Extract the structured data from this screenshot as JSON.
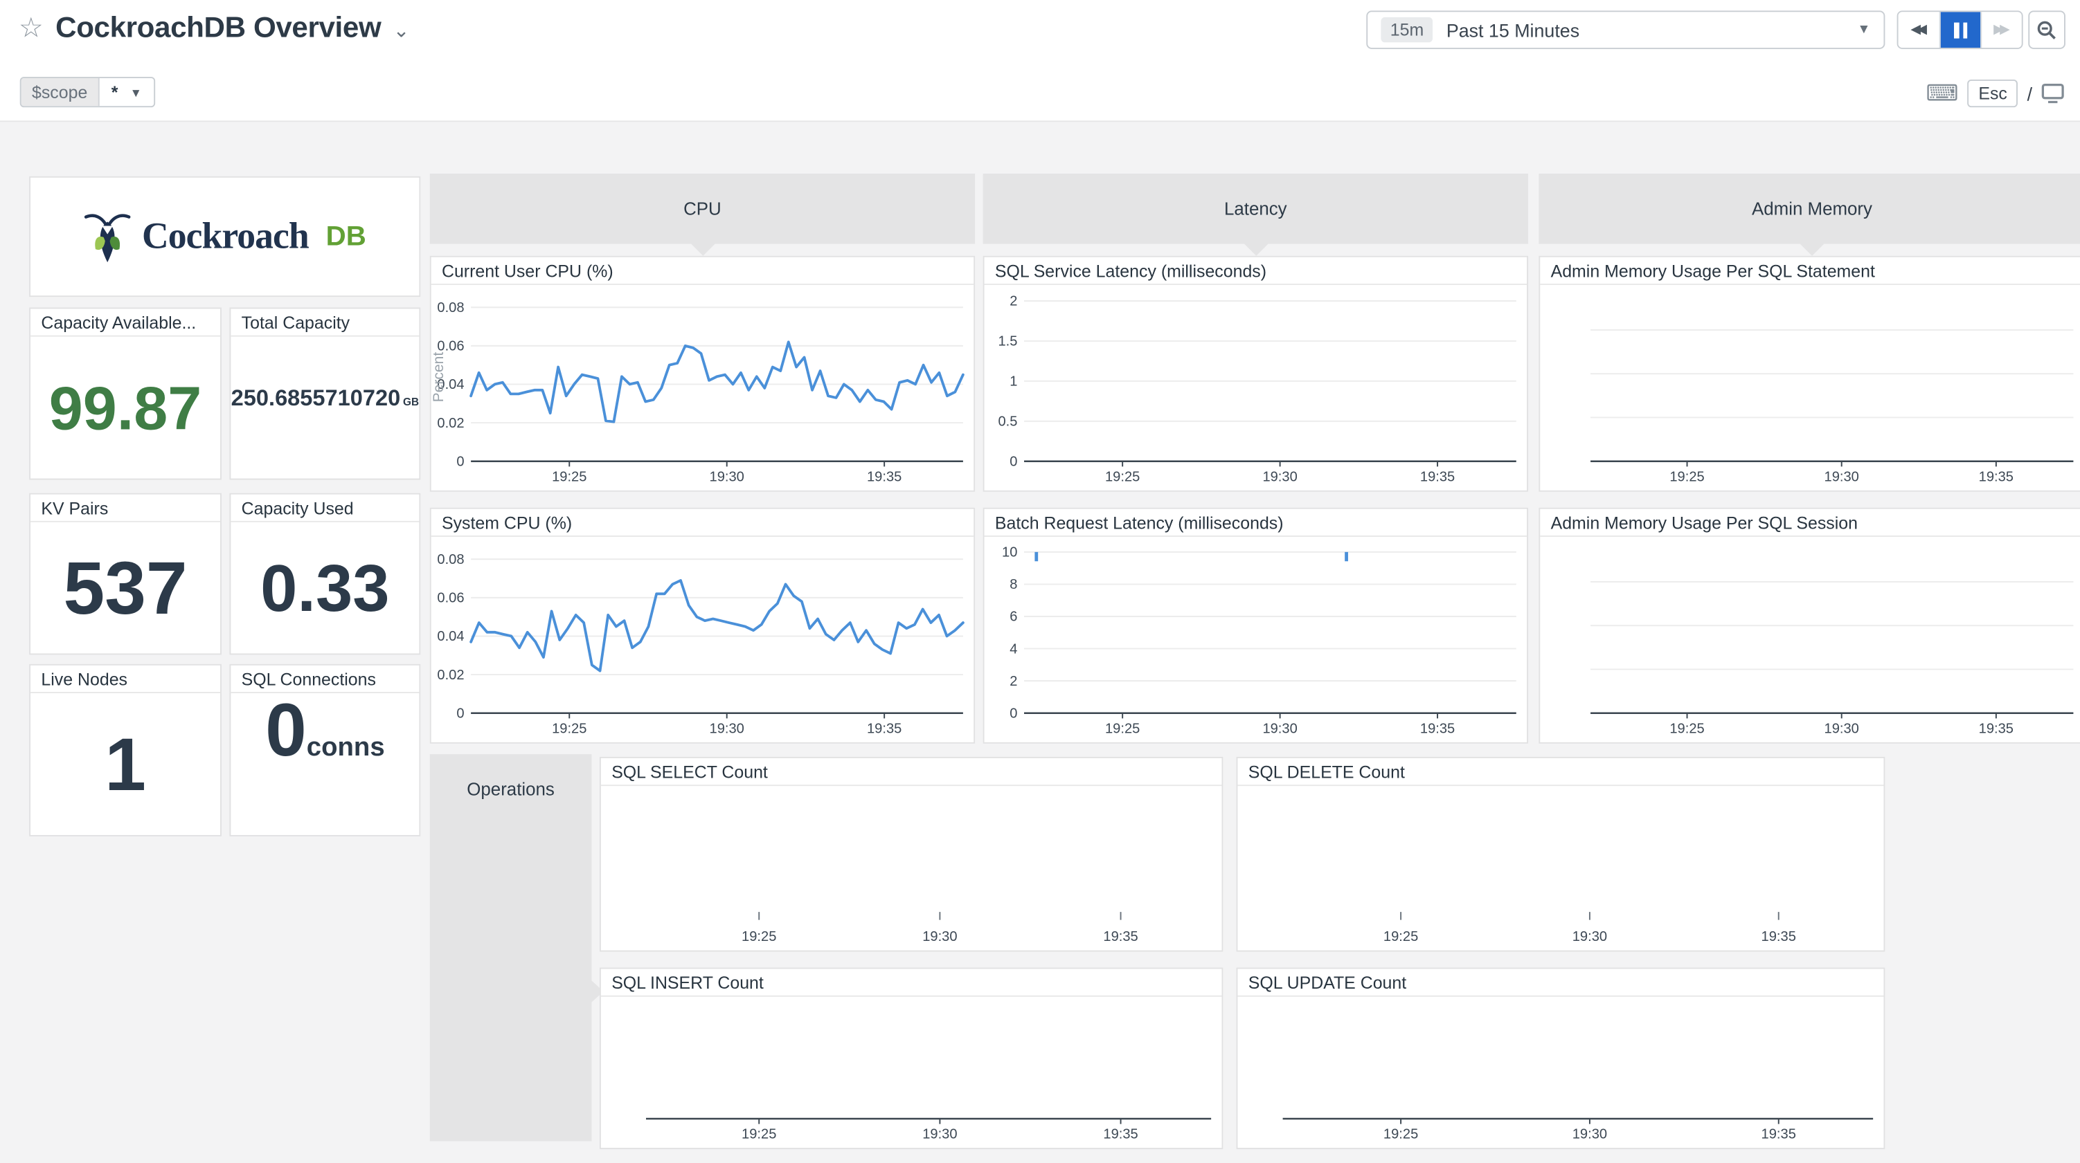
{
  "header": {
    "title": "CockroachDB Overview",
    "time_badge": "15m",
    "time_label": "Past 15 Minutes",
    "esc_label": "Esc",
    "slash": "/"
  },
  "scope": {
    "label": "$scope",
    "value": "*"
  },
  "logo": {
    "brand": "Cockroach",
    "brand_suffix": "DB"
  },
  "colors": {
    "accent_blue": "#2268cc",
    "line_blue": "#4a90d9",
    "value_green": "#3f7d45",
    "value_dark": "#2c3a49",
    "group_gray": "#e4e4e5"
  },
  "groups": {
    "cpu": "CPU",
    "latency": "Latency",
    "admin_memory": "Admin Memory",
    "operations": "Operations"
  },
  "query_values": [
    {
      "title": "Capacity Available...",
      "value": "99.87",
      "unit": ""
    },
    {
      "title": "Total Capacity",
      "value": "250.6855710720",
      "unit": "GB"
    },
    {
      "title": "KV Pairs",
      "value": "537",
      "unit": ""
    },
    {
      "title": "Capacity Used",
      "value": "0.33",
      "unit": ""
    },
    {
      "title": "Live Nodes",
      "value": "1",
      "unit": ""
    },
    {
      "title": "SQL Connections",
      "value": "0",
      "unit": "conns"
    }
  ],
  "chart_data": [
    {
      "id": "cpu_user",
      "type": "line",
      "title": "Current User CPU (%)",
      "ylabel": "Percent",
      "xticks": [
        "19:25",
        "19:30",
        "19:35"
      ],
      "yticks": [
        0,
        0.02,
        0.04,
        0.06,
        0.08
      ],
      "ytick_labels": [
        "0",
        "0.02",
        "0.04",
        "0.06",
        "0.08"
      ],
      "ymax": 0.0875,
      "axis_line": true,
      "color": "#4a90d9",
      "values": [
        0.034,
        0.046,
        0.037,
        0.04,
        0.041,
        0.035,
        0.035,
        0.036,
        0.037,
        0.037,
        0.025,
        0.049,
        0.034,
        0.04,
        0.045,
        0.044,
        0.043,
        0.021,
        0.0205,
        0.044,
        0.04,
        0.041,
        0.031,
        0.032,
        0.038,
        0.05,
        0.051,
        0.06,
        0.059,
        0.056,
        0.042,
        0.044,
        0.045,
        0.04,
        0.046,
        0.037,
        0.044,
        0.038,
        0.049,
        0.047,
        0.062,
        0.049,
        0.054,
        0.037,
        0.047,
        0.034,
        0.033,
        0.04,
        0.037,
        0.031,
        0.037,
        0.032,
        0.031,
        0.027,
        0.041,
        0.042,
        0.04,
        0.05,
        0.041,
        0.046,
        0.034,
        0.036,
        0.045
      ]
    },
    {
      "id": "cpu_system",
      "type": "line",
      "title": "System CPU (%)",
      "ylabel": "",
      "xticks": [
        "19:25",
        "19:30",
        "19:35"
      ],
      "yticks": [
        0,
        0.02,
        0.04,
        0.06,
        0.08
      ],
      "ytick_labels": [
        "0",
        "0.02",
        "0.04",
        "0.06",
        "0.08"
      ],
      "ymax": 0.0875,
      "axis_line": true,
      "color": "#4a90d9",
      "values": [
        0.037,
        0.047,
        0.042,
        0.042,
        0.041,
        0.04,
        0.034,
        0.042,
        0.037,
        0.029,
        0.053,
        0.038,
        0.044,
        0.051,
        0.047,
        0.025,
        0.022,
        0.051,
        0.045,
        0.048,
        0.034,
        0.037,
        0.045,
        0.062,
        0.062,
        0.067,
        0.069,
        0.056,
        0.05,
        0.048,
        0.049,
        0.048,
        0.047,
        0.046,
        0.045,
        0.043,
        0.046,
        0.053,
        0.057,
        0.067,
        0.061,
        0.058,
        0.044,
        0.049,
        0.041,
        0.038,
        0.043,
        0.047,
        0.037,
        0.043,
        0.036,
        0.033,
        0.031,
        0.047,
        0.044,
        0.046,
        0.054,
        0.047,
        0.051,
        0.04,
        0.043,
        0.047
      ]
    },
    {
      "id": "latency_sql",
      "type": "line",
      "title": "SQL Service Latency (milliseconds)",
      "ylabel": "",
      "xticks": [
        "19:25",
        "19:30",
        "19:35"
      ],
      "yticks": [
        0,
        0.5,
        1,
        1.5,
        2
      ],
      "ytick_labels": [
        "0",
        "0.5",
        "1",
        "1.5",
        "2"
      ],
      "ymax": 2.1,
      "axis_line": true,
      "color": "#4a90d9",
      "values": []
    },
    {
      "id": "latency_batch",
      "type": "line",
      "title": "Batch Request Latency (milliseconds)",
      "ylabel": "",
      "xticks": [
        "19:25",
        "19:30",
        "19:35"
      ],
      "yticks": [
        0,
        2,
        4,
        6,
        8,
        10
      ],
      "ytick_labels": [
        "0",
        "2",
        "4",
        "6",
        "8",
        "10"
      ],
      "ymax": 10.45,
      "axis_line": true,
      "color": "#4a90d9",
      "values": [],
      "marks": [
        {
          "x": 0.025,
          "y": 10
        },
        {
          "x": 0.655,
          "y": 10
        }
      ]
    },
    {
      "id": "admin_stmt",
      "type": "line",
      "title": "Admin Memory Usage Per SQL Statement",
      "ylabel": "",
      "xticks": [
        "19:25",
        "19:30",
        "19:35"
      ],
      "yticks": [],
      "ytick_labels": [],
      "gridline_count": 3,
      "ymax": 1,
      "axis_line": true,
      "color": "#4a90d9",
      "values": []
    },
    {
      "id": "admin_session",
      "type": "line",
      "title": "Admin Memory Usage Per SQL Session",
      "ylabel": "",
      "xticks": [
        "19:25",
        "19:30",
        "19:35"
      ],
      "yticks": [],
      "ytick_labels": [],
      "gridline_count": 3,
      "ymax": 1,
      "axis_line": true,
      "color": "#4a90d9",
      "values": []
    },
    {
      "id": "sql_select",
      "type": "line",
      "title": "SQL SELECT Count",
      "ylabel": "",
      "xticks": [
        "19:25",
        "19:30",
        "19:35"
      ],
      "yticks": [],
      "ytick_labels": [],
      "ymax": 1,
      "axis_line": false,
      "color": "#4a90d9",
      "values": []
    },
    {
      "id": "sql_delete",
      "type": "line",
      "title": "SQL DELETE Count",
      "ylabel": "",
      "xticks": [
        "19:25",
        "19:30",
        "19:35"
      ],
      "yticks": [],
      "ytick_labels": [],
      "ymax": 1,
      "axis_line": false,
      "color": "#4a90d9",
      "values": []
    },
    {
      "id": "sql_insert",
      "type": "line",
      "title": "SQL INSERT Count",
      "ylabel": "",
      "xticks": [
        "19:25",
        "19:30",
        "19:35"
      ],
      "yticks": [],
      "ytick_labels": [],
      "ymax": 1,
      "axis_line": true,
      "color": "#4a90d9",
      "values": []
    },
    {
      "id": "sql_update",
      "type": "line",
      "title": "SQL UPDATE Count",
      "ylabel": "",
      "xticks": [
        "19:25",
        "19:30",
        "19:35"
      ],
      "yticks": [],
      "ytick_labels": [],
      "ymax": 1,
      "axis_line": true,
      "color": "#4a90d9",
      "values": []
    }
  ]
}
